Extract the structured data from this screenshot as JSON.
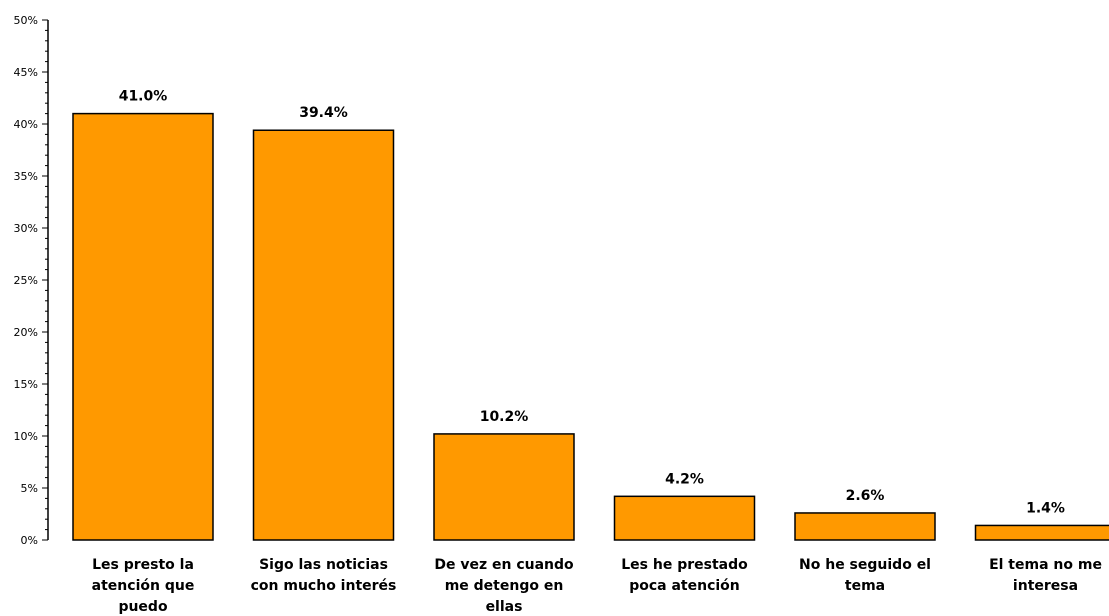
{
  "chart_data": {
    "type": "bar",
    "title": "",
    "xlabel": "",
    "ylabel": "",
    "ylim": [
      0,
      50
    ],
    "y_major_step": 5,
    "y_minor_step": 1,
    "y_tick_suffix": "%",
    "grid": false,
    "legend": "none",
    "bar_color": "#ff9900",
    "bar_stroke": "#000000",
    "categories": [
      [
        "Les presto la",
        "atención que",
        "puedo"
      ],
      [
        "Sigo las noticias",
        "con mucho interés"
      ],
      [
        "De vez en cuando",
        "me detengo en",
        "ellas"
      ],
      [
        "Les he prestado",
        "poca atención"
      ],
      [
        "No he seguido el",
        "tema"
      ],
      [
        "El tema no me",
        "interesa"
      ]
    ],
    "values": [
      41.0,
      39.4,
      10.2,
      4.2,
      2.6,
      1.4
    ],
    "data_labels": [
      "41.0%",
      "39.4%",
      "10.2%",
      "4.2%",
      "2.6%",
      "1.4%"
    ]
  }
}
